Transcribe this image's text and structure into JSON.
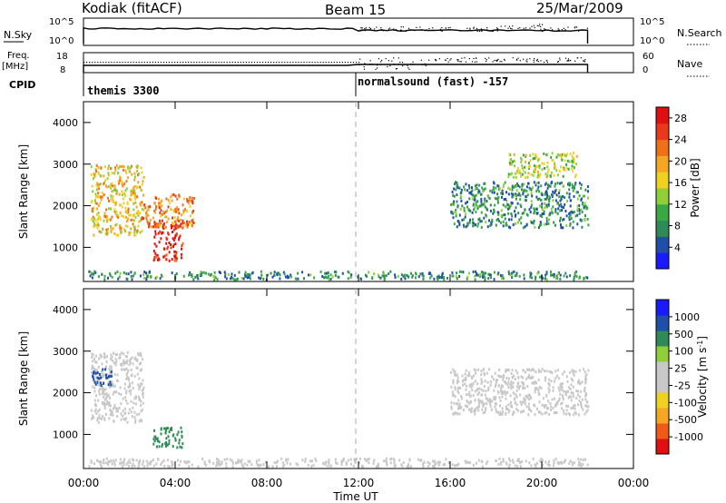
{
  "header": {
    "station": "Kodiak (fitACF)",
    "beam": "Beam 15",
    "date": "25/Mar/2009"
  },
  "status_panels": {
    "nsky_label": "N.Sky",
    "nsky_ticks": [
      "10^5",
      "10^0"
    ],
    "nsearch_label": "N.Search",
    "nsearch_ticks": [
      "10^5",
      "10^0"
    ],
    "freq_label": "Freq.",
    "freq_unit": "[MHz]",
    "freq_ticks": [
      "18",
      "8"
    ],
    "nave_label": "Nave",
    "nave_ticks": [
      "60",
      "0"
    ],
    "cpid_label": "CPID",
    "cpid_segments": [
      {
        "label": "themis 3300",
        "start_hour": 0.0
      },
      {
        "label": "normalsound (fast) -157",
        "start_hour": 12.0
      }
    ]
  },
  "colors": {
    "frame": "#000000",
    "grid_line": "#aaaaaa",
    "power_scale": [
      "#1a1aff",
      "#1f4fa8",
      "#2e8b57",
      "#39a845",
      "#8fcf3a",
      "#f0d020",
      "#f5a623",
      "#f07018",
      "#e83a1a",
      "#e01010"
    ],
    "velocity_scale": [
      "#e01010",
      "#f05a18",
      "#f5a623",
      "#f0d020",
      "#c8c8c8",
      "#c8c8c8",
      "#8fcf3a",
      "#2e8b57",
      "#1f4fa8",
      "#1a1aff"
    ]
  },
  "chart_data": [
    {
      "type": "heatmap",
      "title": "",
      "xlabel": "",
      "ylabel": "Slant Range [km]",
      "xlim": [
        0,
        24
      ],
      "ylim": [
        180,
        4500
      ],
      "yticks": [
        1000,
        2000,
        3000,
        4000
      ],
      "colorbar": {
        "label": "Power [dB]",
        "ticks": [
          "4",
          "8",
          "12",
          "16",
          "20",
          "24",
          "28"
        ],
        "range": [
          0,
          30
        ]
      },
      "regions": [
        {
          "name": "ground-scatter band",
          "x": [
            0.2,
            22.0
          ],
          "y": [
            250,
            450
          ],
          "value": 8
        },
        {
          "name": "early cloud",
          "x": [
            0.3,
            2.6
          ],
          "y": [
            1300,
            3000
          ],
          "value": 18
        },
        {
          "name": "intense patch",
          "x": [
            3.0,
            4.3
          ],
          "y": [
            700,
            1600
          ],
          "value": 28
        },
        {
          "name": "arc",
          "x": [
            2.5,
            4.8
          ],
          "y": [
            1500,
            2300
          ],
          "value": 22
        },
        {
          "name": "late echoes",
          "x": [
            16.0,
            22.0
          ],
          "y": [
            1500,
            2600
          ],
          "value": 8
        },
        {
          "name": "late sparse",
          "x": [
            18.5,
            21.5
          ],
          "y": [
            2700,
            3300
          ],
          "value": 14
        }
      ]
    },
    {
      "type": "heatmap",
      "title": "",
      "xlabel": "Time UT",
      "ylabel": "Slant Range [km]",
      "xlim": [
        0,
        24
      ],
      "ylim": [
        180,
        4500
      ],
      "xticks": [
        "00:00",
        "04:00",
        "08:00",
        "12:00",
        "16:00",
        "20:00",
        "00:00"
      ],
      "yticks": [
        1000,
        2000,
        3000,
        4000
      ],
      "colorbar": {
        "label": "Velocity [m s^-1]",
        "ticks": [
          "-1000",
          "-500",
          "-100",
          "-25",
          "25",
          "100",
          "500",
          "1000"
        ]
      },
      "regions": [
        {
          "name": "ground-scatter band",
          "x": [
            0.2,
            22.0
          ],
          "y": [
            250,
            450
          ],
          "value": 0
        },
        {
          "name": "early cloud",
          "x": [
            0.3,
            2.6
          ],
          "y": [
            1300,
            3000
          ],
          "value": 0
        },
        {
          "name": "green patch",
          "x": [
            3.0,
            4.3
          ],
          "y": [
            700,
            1200
          ],
          "value": 300
        },
        {
          "name": "blue patch",
          "x": [
            0.3,
            1.2
          ],
          "y": [
            2200,
            2600
          ],
          "value": 800
        },
        {
          "name": "late echoes",
          "x": [
            16.0,
            22.0
          ],
          "y": [
            1500,
            2600
          ],
          "value": 0
        }
      ]
    }
  ]
}
